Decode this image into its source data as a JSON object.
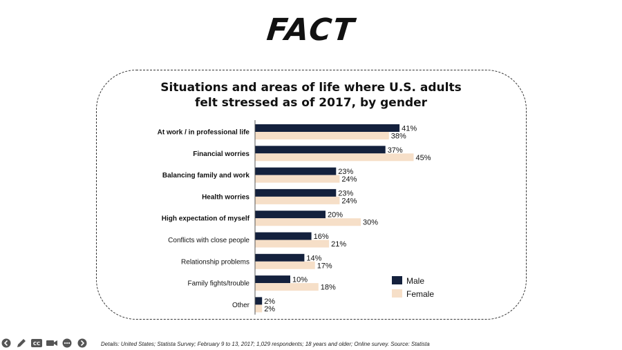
{
  "heading": "FACT",
  "chart_data": {
    "type": "bar",
    "orientation": "horizontal",
    "title": "Situations and areas of life where U.S. adults felt stressed as of 2017, by gender",
    "title_lines": [
      "Situations and areas of life where U.S. adults",
      "felt stressed as of 2017, by gender"
    ],
    "categories": [
      "At work / in professional life",
      "Financial worries",
      "Balancing family and work",
      "Health worries",
      "High expectation of myself",
      "Conflicts with close people",
      "Relationship problems",
      "Family fights/trouble",
      "Other"
    ],
    "bold_categories": [
      true,
      true,
      true,
      true,
      true,
      false,
      false,
      false,
      false
    ],
    "series": [
      {
        "name": "Male",
        "color": "#14213d",
        "values": [
          41,
          37,
          23,
          23,
          20,
          16,
          14,
          10,
          2
        ]
      },
      {
        "name": "Female",
        "color": "#f6dfc8",
        "values": [
          38,
          45,
          24,
          24,
          30,
          21,
          17,
          18,
          2
        ]
      }
    ],
    "value_suffix": "%",
    "xlim": [
      0,
      50
    ],
    "grid": false,
    "legend_position": "bottom-right"
  },
  "footnote": "Details: United States; Statista Survey; February 9 to 13, 2017; 1,029 respondents; 18 years and older; Online survey. Source: Statista",
  "controls": [
    "previous-icon",
    "pen-icon",
    "closed-captions-icon",
    "camera-icon",
    "more-icon",
    "next-icon"
  ]
}
